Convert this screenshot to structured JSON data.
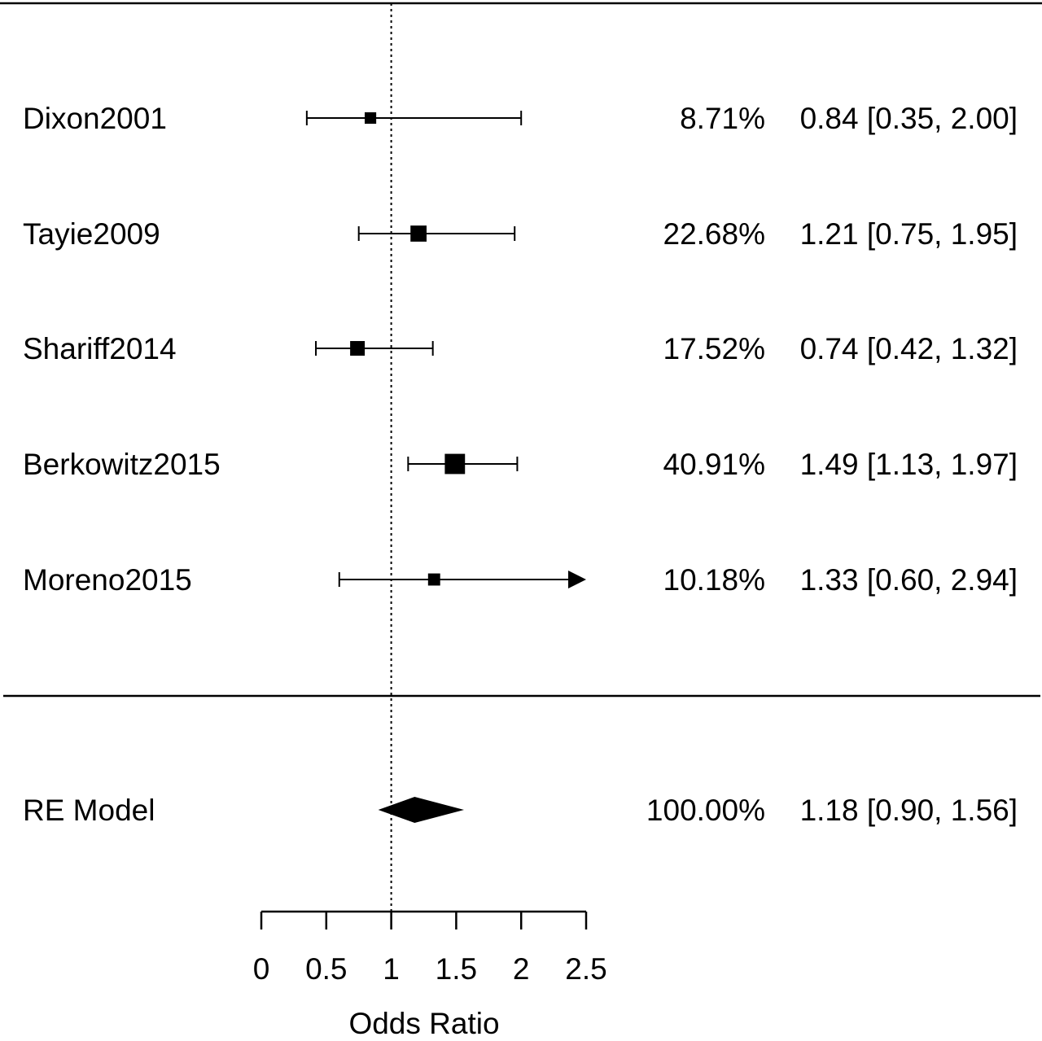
{
  "chart_data": {
    "type": "forest",
    "xlabel": "Odds Ratio",
    "xticks": [
      0,
      0.5,
      1,
      1.5,
      2,
      2.5
    ],
    "xtick_labels": [
      "0",
      "0.5",
      "1",
      "1.5",
      "2",
      "2.5"
    ],
    "xlim": [
      0,
      2.5
    ],
    "reference_line": 1,
    "studies": [
      {
        "name": "Dixon2001",
        "or": 0.84,
        "lower": 0.35,
        "upper": 2.0,
        "weight": 8.71,
        "weight_text": "8.71%",
        "ci_text": "0.84 [0.35, 2.00]"
      },
      {
        "name": "Tayie2009",
        "or": 1.21,
        "lower": 0.75,
        "upper": 1.95,
        "weight": 22.68,
        "weight_text": "22.68%",
        "ci_text": "1.21 [0.75, 1.95]"
      },
      {
        "name": "Shariff2014",
        "or": 0.74,
        "lower": 0.42,
        "upper": 1.32,
        "weight": 17.52,
        "weight_text": "17.52%",
        "ci_text": "0.74 [0.42, 1.32]"
      },
      {
        "name": "Berkowitz2015",
        "or": 1.49,
        "lower": 1.13,
        "upper": 1.97,
        "weight": 40.91,
        "weight_text": "40.91%",
        "ci_text": "1.49 [1.13, 1.97]"
      },
      {
        "name": "Moreno2015",
        "or": 1.33,
        "lower": 0.6,
        "upper": 2.94,
        "weight": 10.18,
        "weight_text": "10.18%",
        "ci_text": "1.33 [0.60, 2.94]"
      }
    ],
    "summary": {
      "name": "RE Model",
      "or": 1.18,
      "lower": 0.9,
      "upper": 1.56,
      "weight_text": "100.00%",
      "ci_text": "1.18 [0.90, 1.56]"
    }
  }
}
